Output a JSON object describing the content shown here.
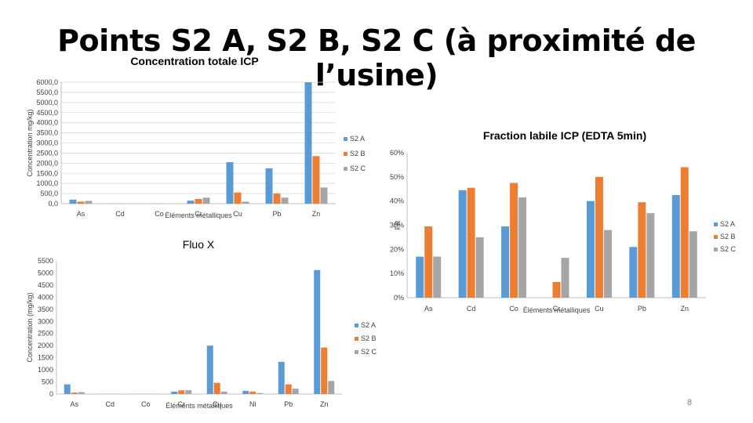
{
  "slide": {
    "title": "Points S2 A, S2 B, S2 C (à proximité de l’usine)",
    "page_number": "8"
  },
  "colors": {
    "S2 A": "#5b9bd5",
    "S2 B": "#ed7d31",
    "S2 C": "#a5a5a5"
  },
  "chart_data": [
    {
      "id": "icp",
      "type": "bar",
      "title": "Concentration totale ICP",
      "xlabel": "Éléments métalliques",
      "ylabel": "Concentration mg/kg)",
      "categories": [
        "As",
        "Cd",
        "Co",
        "Cr",
        "Cu",
        "Pb",
        "Zn"
      ],
      "ylim": [
        0,
        6000
      ],
      "yticks": [
        "0,0",
        "500,0",
        "1000,0",
        "1500,0",
        "2000,0",
        "2500,0",
        "3000,0",
        "3500,0",
        "4000,0",
        "4500,0",
        "5000,0",
        "5500,0",
        "6000,0"
      ],
      "ytick_values": [
        0,
        500,
        1000,
        1500,
        2000,
        2500,
        3000,
        3500,
        4000,
        4500,
        5000,
        5500,
        6000
      ],
      "grid": true,
      "legend": "right",
      "series": [
        {
          "name": "S2 A",
          "values": [
            200,
            5,
            5,
            150,
            2050,
            1750,
            6200
          ]
        },
        {
          "name": "S2 B",
          "values": [
            100,
            5,
            5,
            230,
            550,
            500,
            2350
          ]
        },
        {
          "name": "S2 C",
          "values": [
            140,
            5,
            5,
            300,
            100,
            300,
            800
          ]
        }
      ]
    },
    {
      "id": "edta",
      "type": "bar",
      "title": "Fraction labile ICP (EDTA 5min)",
      "xlabel": "Éléments métalliques",
      "ylabel": "FR",
      "categories": [
        "As",
        "Cd",
        "Co",
        "Cr",
        "Cu",
        "Pb",
        "Zn"
      ],
      "ylim": [
        0,
        0.6
      ],
      "yticks": [
        "0%",
        "10%",
        "20%",
        "30%",
        "40%",
        "50%",
        "60%"
      ],
      "ytick_values": [
        0,
        0.1,
        0.2,
        0.3,
        0.4,
        0.5,
        0.6
      ],
      "grid": false,
      "legend": "right",
      "series": [
        {
          "name": "S2 A",
          "values": [
            0.17,
            0.445,
            0.295,
            0,
            0.4,
            0.21,
            0.425
          ]
        },
        {
          "name": "S2 B",
          "values": [
            0.295,
            0.455,
            0.475,
            0.065,
            0.5,
            0.395,
            0.54
          ]
        },
        {
          "name": "S2 C",
          "values": [
            0.17,
            0.25,
            0.415,
            0.165,
            0.28,
            0.35,
            0.275
          ]
        }
      ]
    },
    {
      "id": "fluo",
      "type": "bar",
      "title": "Fluo X",
      "xlabel": "Éléments métalliques",
      "ylabel": "Concentration (mg/kg)",
      "categories": [
        "As",
        "Cd",
        "Co",
        "Cr",
        "Cu",
        "Ni",
        "Pb",
        "Zn"
      ],
      "ylim": [
        0,
        5500
      ],
      "yticks": [
        "0",
        "500",
        "1000",
        "1500",
        "2000",
        "2500",
        "3000",
        "3500",
        "4000",
        "4500",
        "5000",
        "5500"
      ],
      "ytick_values": [
        0,
        500,
        1000,
        1500,
        2000,
        2500,
        3000,
        3500,
        4000,
        4500,
        5000,
        5500
      ],
      "grid": false,
      "legend": "right",
      "series": [
        {
          "name": "S2 A",
          "values": [
            400,
            5,
            5,
            100,
            2000,
            130,
            1330,
            5120
          ]
        },
        {
          "name": "S2 B",
          "values": [
            60,
            5,
            5,
            150,
            460,
            100,
            400,
            1920
          ]
        },
        {
          "name": "S2 C",
          "values": [
            80,
            5,
            5,
            160,
            100,
            40,
            220,
            540
          ]
        }
      ]
    }
  ]
}
